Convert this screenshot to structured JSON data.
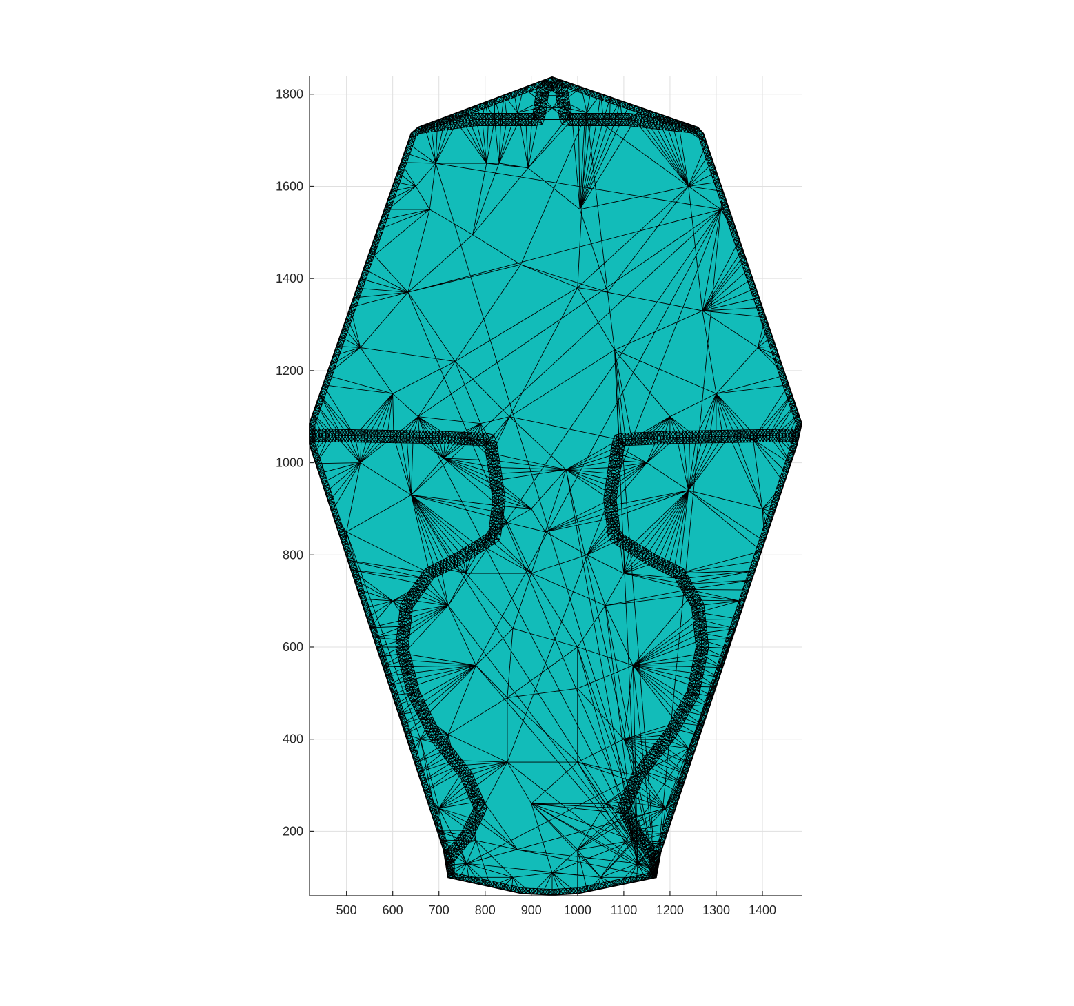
{
  "chart_data": {
    "type": "mesh",
    "title": "",
    "xlabel": "",
    "ylabel": "",
    "xlim": [
      420,
      1485
    ],
    "ylim": [
      60,
      1840
    ],
    "xticks": [
      500,
      600,
      700,
      800,
      900,
      1000,
      1100,
      1200,
      1300,
      1400
    ],
    "yticks": [
      200,
      400,
      600,
      800,
      1000,
      1200,
      1400,
      1600,
      1800
    ],
    "xtick_labels": [
      "500",
      "600",
      "700",
      "800",
      "900",
      "1000",
      "1100",
      "1200",
      "1300",
      "1400"
    ],
    "ytick_labels": [
      "200",
      "400",
      "600",
      "800",
      "1000",
      "1200",
      "1400",
      "1600",
      "1800"
    ],
    "grid": true,
    "face_color": "#12bcb9",
    "edge_color": "#000000",
    "domain_boundary": [
      [
        945,
        1837
      ],
      [
        1260,
        1728
      ],
      [
        1272,
        1715
      ],
      [
        1485,
        1085
      ],
      [
        1475,
        1040
      ],
      [
        1180,
        155
      ],
      [
        1170,
        100
      ],
      [
        1000,
        65
      ],
      [
        945,
        62
      ],
      [
        880,
        65
      ],
      [
        720,
        100
      ],
      [
        710,
        160
      ],
      [
        420,
        1040
      ],
      [
        420,
        1085
      ],
      [
        640,
        1715
      ],
      [
        655,
        1728
      ]
    ],
    "interface_curves": [
      {
        "points": [
          [
            655,
            1728
          ],
          [
            780,
            1745
          ],
          [
            915,
            1745
          ],
          [
            925,
            1810
          ],
          [
            945,
            1825
          ],
          [
            965,
            1810
          ],
          [
            975,
            1745
          ],
          [
            1110,
            1745
          ],
          [
            1260,
            1728
          ]
        ]
      },
      {
        "points": [
          [
            420,
            1060
          ],
          [
            700,
            1055
          ],
          [
            810,
            1050
          ],
          [
            820,
            990
          ],
          [
            830,
            920
          ],
          [
            820,
            840
          ],
          [
            740,
            790
          ],
          [
            680,
            760
          ],
          [
            630,
            690
          ],
          [
            620,
            600
          ],
          [
            645,
            500
          ],
          [
            690,
            410
          ],
          [
            760,
            320
          ],
          [
            790,
            250
          ],
          [
            760,
            190
          ],
          [
            720,
            140
          ],
          [
            720,
            100
          ]
        ]
      },
      {
        "points": [
          [
            1485,
            1060
          ],
          [
            1200,
            1055
          ],
          [
            1090,
            1050
          ],
          [
            1080,
            990
          ],
          [
            1070,
            920
          ],
          [
            1080,
            840
          ],
          [
            1160,
            790
          ],
          [
            1220,
            760
          ],
          [
            1260,
            690
          ],
          [
            1270,
            600
          ],
          [
            1250,
            500
          ],
          [
            1200,
            410
          ],
          [
            1130,
            320
          ],
          [
            1100,
            250
          ],
          [
            1130,
            190
          ],
          [
            1170,
            140
          ],
          [
            1170,
            100
          ]
        ]
      }
    ],
    "coarse_nodes": [
      [
        693,
        1650
      ],
      [
        803,
        1650
      ],
      [
        893,
        1640
      ],
      [
        715,
        1620
      ],
      [
        830,
        1650
      ],
      [
        680,
        1550
      ],
      [
        773,
        1495
      ],
      [
        877,
        1430
      ],
      [
        1005,
        1550
      ],
      [
        1065,
        1370
      ],
      [
        1000,
        1380
      ],
      [
        633,
        1370
      ],
      [
        735,
        1220
      ],
      [
        1080,
        1245
      ],
      [
        1200,
        1100
      ],
      [
        1270,
        1330
      ],
      [
        790,
        1085
      ],
      [
        853,
        1100
      ],
      [
        655,
        1100
      ],
      [
        975,
        985
      ],
      [
        900,
        900
      ],
      [
        640,
        930
      ],
      [
        710,
        1010
      ],
      [
        1150,
        1000
      ],
      [
        1240,
        940
      ],
      [
        848,
        870
      ],
      [
        930,
        850
      ],
      [
        793,
        820
      ],
      [
        1020,
        800
      ],
      [
        758,
        760
      ],
      [
        900,
        760
      ],
      [
        1100,
        760
      ],
      [
        860,
        640
      ],
      [
        1060,
        690
      ],
      [
        720,
        690
      ],
      [
        1000,
        600
      ],
      [
        780,
        560
      ],
      [
        1120,
        560
      ],
      [
        848,
        490
      ],
      [
        1000,
        510
      ],
      [
        720,
        410
      ],
      [
        1100,
        400
      ],
      [
        848,
        350
      ],
      [
        1000,
        350
      ],
      [
        900,
        260
      ],
      [
        800,
        260
      ],
      [
        1060,
        260
      ],
      [
        870,
        160
      ],
      [
        1000,
        160
      ],
      [
        780,
        180
      ],
      [
        1120,
        180
      ],
      [
        945,
        110
      ],
      [
        1050,
        100
      ],
      [
        860,
        100
      ],
      [
        945,
        1770
      ],
      [
        870,
        1760
      ],
      [
        1020,
        1760
      ],
      [
        760,
        1760
      ],
      [
        1130,
        1760
      ],
      [
        560,
        1450
      ],
      [
        530,
        1250
      ],
      [
        600,
        1150
      ],
      [
        1360,
        1450
      ],
      [
        1390,
        1250
      ],
      [
        1300,
        1150
      ],
      [
        1380,
        1050
      ],
      [
        530,
        1000
      ],
      [
        1400,
        900
      ],
      [
        500,
        850
      ],
      [
        600,
        700
      ],
      [
        1350,
        700
      ],
      [
        660,
        400
      ],
      [
        1240,
        380
      ],
      [
        700,
        250
      ],
      [
        1190,
        250
      ],
      [
        760,
        130
      ],
      [
        1130,
        130
      ],
      [
        650,
        1600
      ],
      [
        1240,
        1600
      ],
      [
        590,
        1550
      ],
      [
        1310,
        1550
      ]
    ]
  }
}
